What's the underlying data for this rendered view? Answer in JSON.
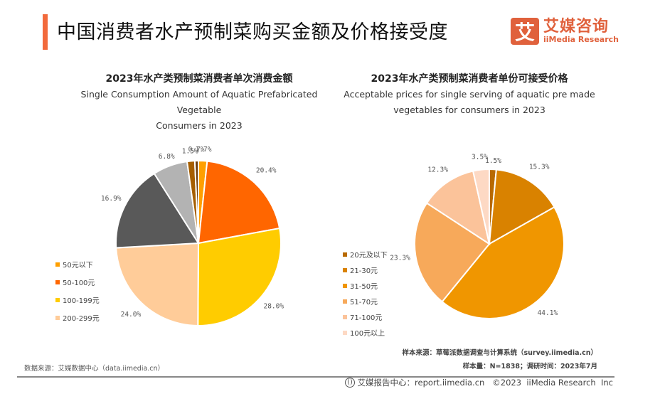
{
  "header": {
    "title": "中国消费者水产预制菜购买金额及价格接受度",
    "accent_color": "#F26A3C",
    "logo": {
      "mark": "艾",
      "name_cn": "艾媒咨询",
      "name_en": "iiMedia Research",
      "color": "#E0613C"
    }
  },
  "chart_data": [
    {
      "type": "pie",
      "title": "2023年水产类预制菜消费者单次消费金额",
      "subtitle_line1": "Single Consumption Amount of Aquatic Prefabricated Vegetable",
      "subtitle_line2": "Consumers in 2023",
      "start": "top",
      "direction": "clockwise",
      "legend_position": "left",
      "slices": [
        {
          "label": "50元以下",
          "value": 1.7,
          "text": "1.7%",
          "color": "#FF9F00",
          "in_legend": true
        },
        {
          "label": "50-100元",
          "value": 20.4,
          "text": "20.4%",
          "color": "#FF6600",
          "in_legend": true
        },
        {
          "label": "100-199元",
          "value": 28.0,
          "text": "28.0%",
          "color": "#FFCC00",
          "in_legend": true
        },
        {
          "label": "200-299元",
          "value": 24.0,
          "text": "24.0%",
          "color": "#FFCC99",
          "in_legend": true
        },
        {
          "label": "",
          "value": 16.9,
          "text": "16.9%",
          "color": "#595959",
          "in_legend": false
        },
        {
          "label": "",
          "value": 6.8,
          "text": "6.8%",
          "color": "#B3B3B3",
          "in_legend": false
        },
        {
          "label": "",
          "value": 1.5,
          "text": "1.5%",
          "color": "#A65E00",
          "in_legend": false
        },
        {
          "label": "",
          "value": 0.7,
          "text": "0.7%",
          "color": "#6B3A0A",
          "in_legend": false
        }
      ]
    },
    {
      "type": "pie",
      "title": "2023年水产类预制菜消费者单份可接受价格",
      "subtitle_line1": "Acceptable prices for single serving of aquatic pre made",
      "subtitle_line2": "vegetables for consumers in 2023",
      "start": "top",
      "direction": "clockwise",
      "legend_position": "left",
      "slices": [
        {
          "label": "20元及以下",
          "value": 1.5,
          "text": "1.5%",
          "color": "#B86A00",
          "in_legend": true
        },
        {
          "label": "21-30元",
          "value": 15.3,
          "text": "15.3%",
          "color": "#D98200",
          "in_legend": true
        },
        {
          "label": "31-50元",
          "value": 44.1,
          "text": "44.1%",
          "color": "#F09600",
          "in_legend": true
        },
        {
          "label": "51-70元",
          "value": 23.3,
          "text": "23.3%",
          "color": "#F7A95A",
          "in_legend": true
        },
        {
          "label": "71-100元",
          "value": 12.3,
          "text": "12.3%",
          "color": "#FBC39A",
          "in_legend": true
        },
        {
          "label": "100元以上",
          "value": 3.5,
          "text": "3.5%",
          "color": "#FDD9C4",
          "in_legend": true
        }
      ]
    }
  ],
  "sources": {
    "left": "数据来源：艾媒数据中心（data.iimedia.cn）",
    "right_line1": "样本来源：草莓派数据调查与计算系统（survey.iimedia.cn）",
    "right_line2": "样本量：N=1838；调研时间：2023年7月"
  },
  "footer": {
    "text": "艾媒报告中心：report.iimedia.cn   ©2023  iiMedia Research  Inc"
  }
}
